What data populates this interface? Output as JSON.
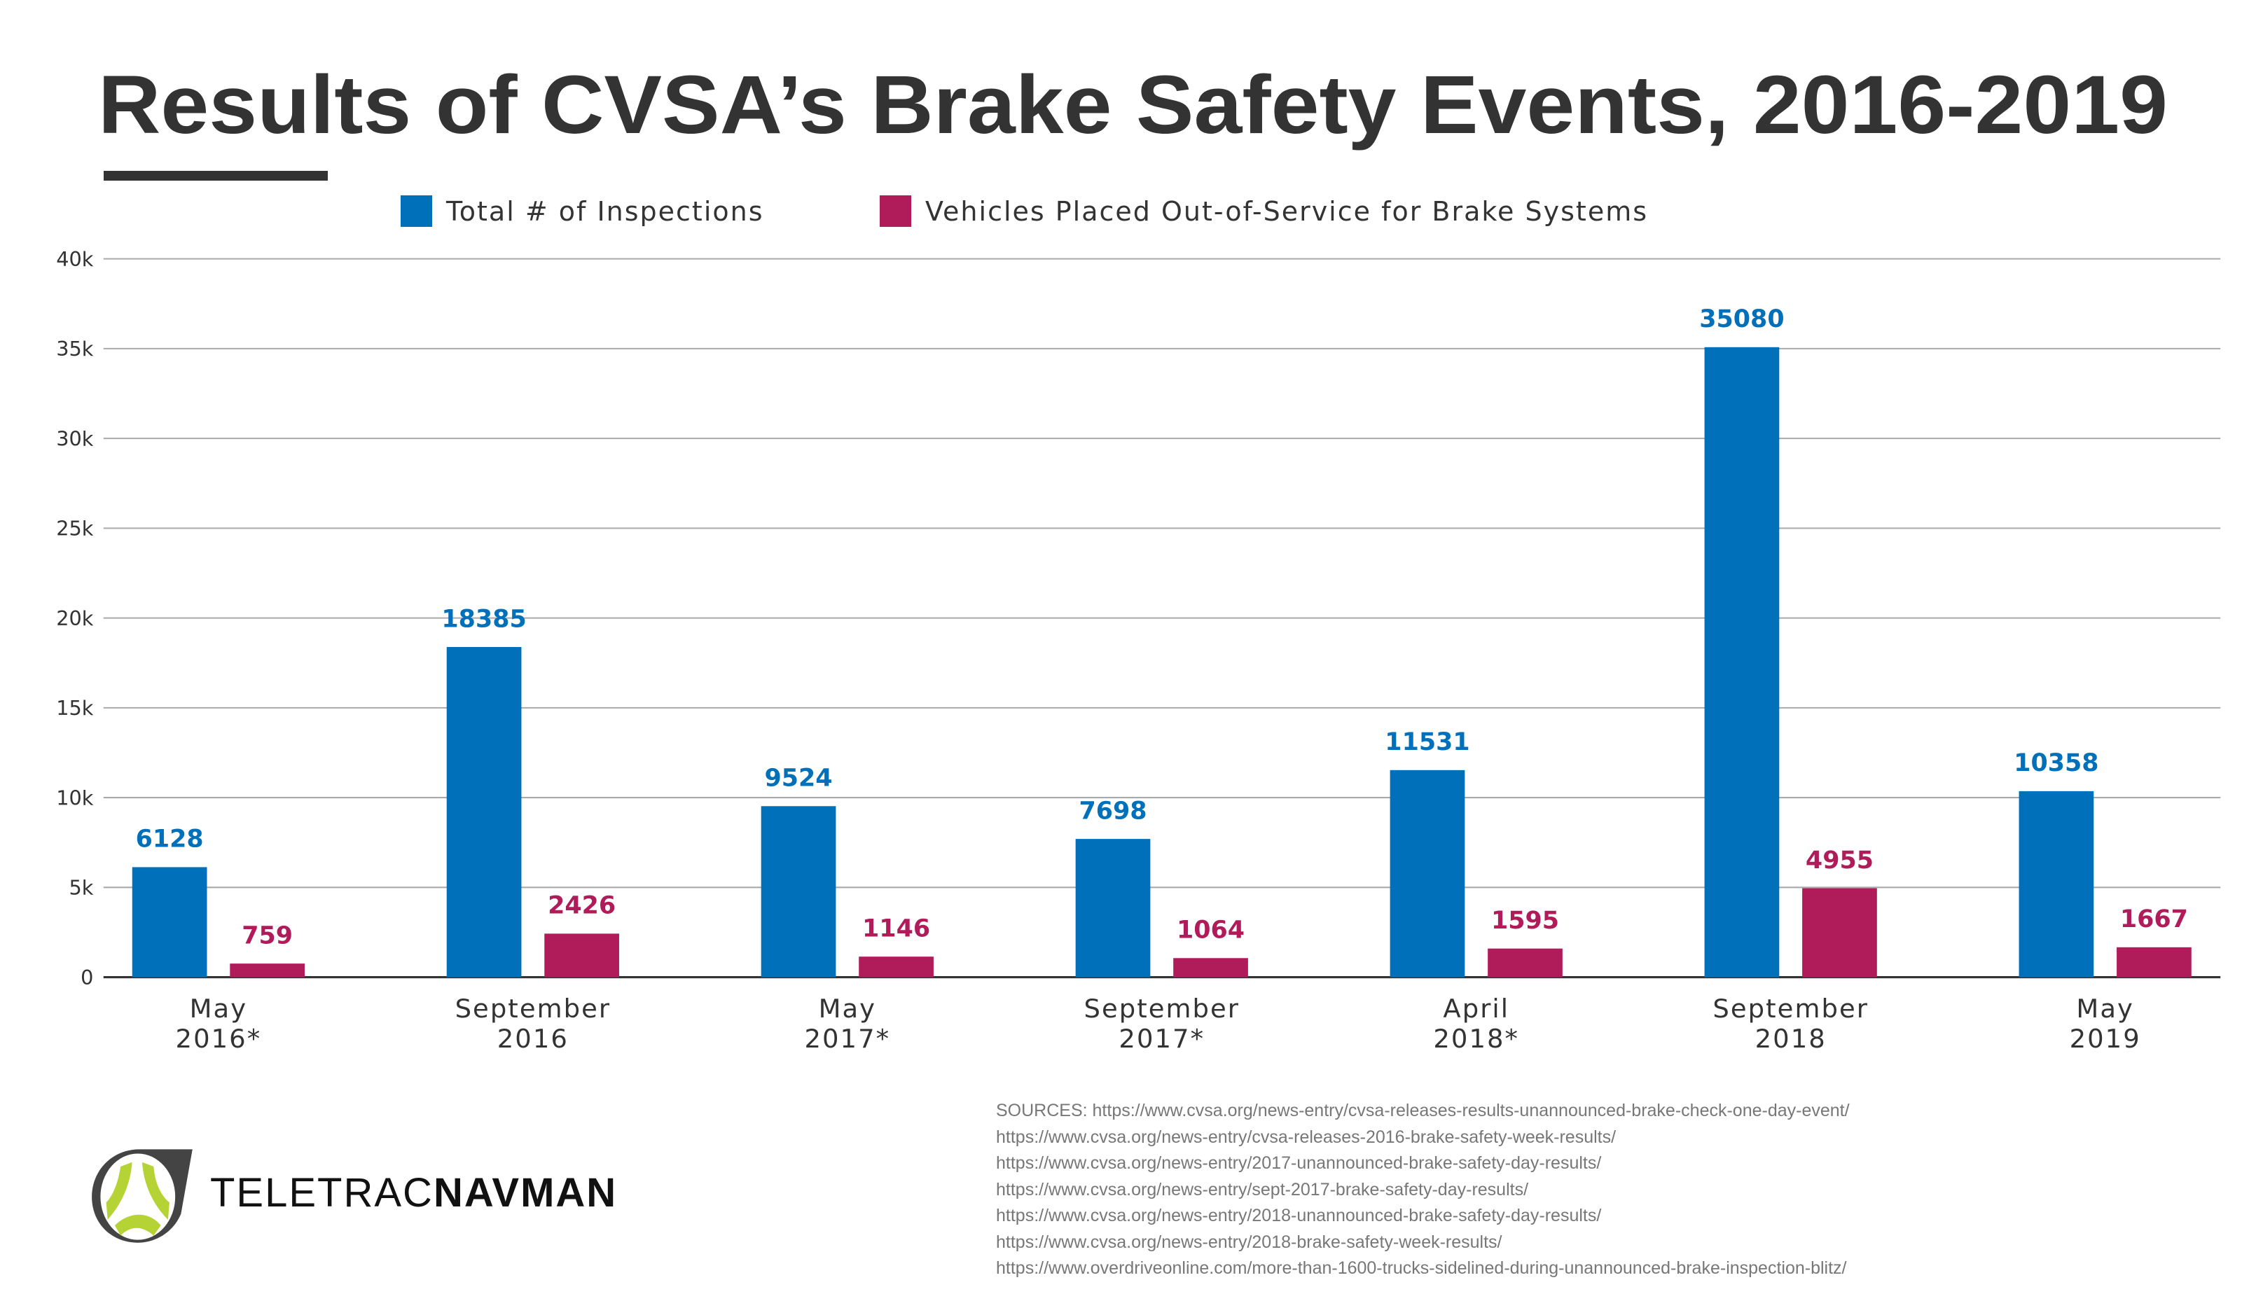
{
  "chart_data": {
    "type": "bar",
    "title": "Results of CVSA’s Brake Safety Events, 2016-2019",
    "categories": [
      [
        "May",
        "2016*"
      ],
      [
        "September",
        "2016"
      ],
      [
        "May",
        "2017*"
      ],
      [
        "September",
        "2017*"
      ],
      [
        "April",
        "2018*"
      ],
      [
        "September",
        "2018"
      ],
      [
        "May",
        "2019"
      ]
    ],
    "series": [
      {
        "name": "Total # of Inspections",
        "color": "#0070ba",
        "values": [
          6128,
          18385,
          9524,
          7698,
          11531,
          35080,
          10358
        ]
      },
      {
        "name": "Vehicles Placed Out-of-Service for Brake Systems",
        "color": "#b01c5a",
        "values": [
          759,
          2426,
          1146,
          1064,
          1595,
          4955,
          1667
        ]
      }
    ],
    "ylim": [
      0,
      40000
    ],
    "yticks": [
      0,
      5000,
      10000,
      15000,
      20000,
      25000,
      30000,
      35000,
      40000
    ],
    "ytick_labels": [
      "0",
      "5k",
      "10k",
      "15k",
      "20k",
      "25k",
      "30k",
      "35k",
      "40k"
    ],
    "grid": true,
    "legend": "top"
  },
  "sources": [
    "SOURCES: https://www.cvsa.org/news-entry/cvsa-releases-results-unannounced-brake-check-one-day-event/",
    "https://www.cvsa.org/news-entry/cvsa-releases-2016-brake-safety-week-results/",
    "https://www.cvsa.org/news-entry/2017-unannounced-brake-safety-day-results/",
    "https://www.cvsa.org/news-entry/sept-2017-brake-safety-day-results/",
    "https://www.cvsa.org/news-entry/2018-unannounced-brake-safety-day-results/",
    "https://www.cvsa.org/news-entry/2018-brake-safety-week-results/",
    "https://www.overdriveonline.com/more-than-1600-trucks-sidelined-during-unannounced-brake-inspection-blitz/"
  ],
  "logo": {
    "text_light": "TELETRAC",
    "text_bold": "NAVMAN",
    "colors": {
      "ring": "#444444",
      "mark": "#b5d334"
    }
  }
}
